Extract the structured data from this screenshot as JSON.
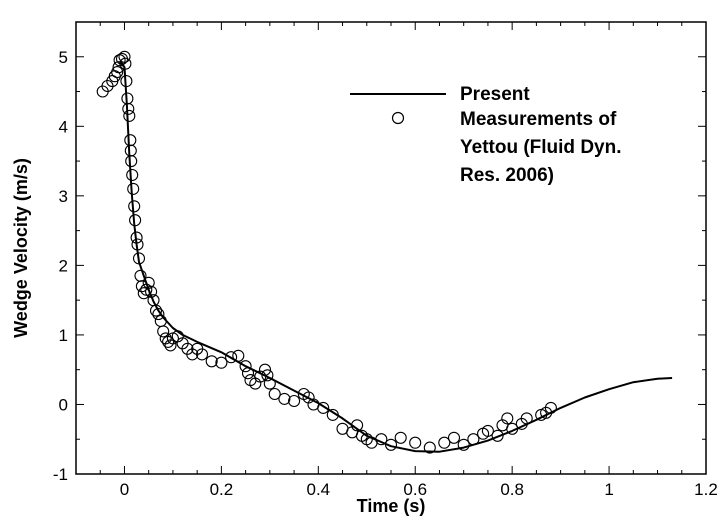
{
  "chart_data": {
    "type": "line",
    "title": "",
    "xlabel": "Time (s)",
    "ylabel": "Wedge Velocity (m/s)",
    "xlim": [
      -0.1,
      1.2
    ],
    "ylim": [
      -1,
      5.5
    ],
    "grid": false,
    "legend_position": "top-right",
    "xticks": [
      0,
      0.2,
      0.4,
      0.6,
      0.8,
      1,
      1.2
    ],
    "xtick_labels": [
      "0",
      "0.2",
      "0.4",
      "0.6",
      "0.8",
      "1",
      "1.2"
    ],
    "yticks": [
      -1,
      0,
      1,
      2,
      3,
      4,
      5
    ],
    "ytick_labels": [
      "-1",
      "0",
      "1",
      "2",
      "3",
      "4",
      "5"
    ],
    "series": [
      {
        "name": "Present",
        "style": "line",
        "color": "#000000",
        "x": [
          -0.01,
          0.0,
          0.005,
          0.01,
          0.015,
          0.02,
          0.025,
          0.03,
          0.04,
          0.05,
          0.06,
          0.07,
          0.08,
          0.1,
          0.12,
          0.15,
          0.2,
          0.25,
          0.3,
          0.35,
          0.4,
          0.45,
          0.5,
          0.55,
          0.6,
          0.65,
          0.7,
          0.75,
          0.8,
          0.85,
          0.9,
          0.95,
          1.0,
          1.05,
          1.1,
          1.13
        ],
        "y": [
          4.93,
          4.85,
          4.3,
          3.6,
          3.05,
          2.6,
          2.3,
          2.05,
          1.85,
          1.65,
          1.48,
          1.35,
          1.25,
          1.1,
          1.0,
          0.9,
          0.75,
          0.55,
          0.38,
          0.2,
          0.02,
          -0.2,
          -0.45,
          -0.6,
          -0.67,
          -0.68,
          -0.62,
          -0.52,
          -0.38,
          -0.22,
          -0.05,
          0.1,
          0.22,
          0.32,
          0.37,
          0.38
        ]
      },
      {
        "name": "Measurements of Yettou (Fluid Dyn. Res. 2006)",
        "style": "markers",
        "marker": "open-circle",
        "color": "#000000",
        "x": [
          -0.045,
          -0.035,
          -0.025,
          -0.02,
          -0.015,
          -0.012,
          -0.01,
          -0.005,
          0.0,
          0.002,
          0.004,
          0.006,
          0.008,
          0.01,
          0.012,
          0.013,
          0.014,
          0.016,
          0.018,
          0.02,
          0.022,
          0.025,
          0.027,
          0.03,
          0.033,
          0.036,
          0.04,
          0.045,
          0.05,
          0.055,
          0.06,
          0.065,
          0.07,
          0.075,
          0.08,
          0.085,
          0.09,
          0.095,
          0.1,
          0.11,
          0.12,
          0.13,
          0.14,
          0.15,
          0.16,
          0.18,
          0.2,
          0.22,
          0.235,
          0.25,
          0.255,
          0.26,
          0.27,
          0.28,
          0.29,
          0.295,
          0.3,
          0.31,
          0.33,
          0.35,
          0.37,
          0.38,
          0.39,
          0.41,
          0.43,
          0.45,
          0.47,
          0.48,
          0.49,
          0.5,
          0.51,
          0.53,
          0.55,
          0.57,
          0.6,
          0.63,
          0.66,
          0.68,
          0.7,
          0.72,
          0.74,
          0.75,
          0.77,
          0.78,
          0.79,
          0.8,
          0.82,
          0.83,
          0.86,
          0.87,
          0.88
        ],
        "y": [
          4.5,
          4.58,
          4.65,
          4.72,
          4.78,
          4.85,
          4.95,
          4.97,
          5.0,
          4.9,
          4.65,
          4.4,
          4.25,
          4.15,
          3.8,
          3.65,
          3.5,
          3.3,
          3.1,
          2.85,
          2.65,
          2.4,
          2.3,
          2.1,
          1.85,
          1.7,
          1.6,
          1.65,
          1.75,
          1.62,
          1.5,
          1.35,
          1.3,
          1.2,
          1.05,
          0.95,
          0.9,
          0.85,
          0.95,
          0.98,
          0.88,
          0.8,
          0.72,
          0.8,
          0.72,
          0.62,
          0.6,
          0.68,
          0.7,
          0.55,
          0.45,
          0.35,
          0.3,
          0.4,
          0.5,
          0.42,
          0.3,
          0.15,
          0.08,
          0.05,
          0.15,
          0.1,
          0.0,
          -0.05,
          -0.15,
          -0.35,
          -0.4,
          -0.3,
          -0.45,
          -0.5,
          -0.55,
          -0.5,
          -0.58,
          -0.48,
          -0.55,
          -0.62,
          -0.55,
          -0.48,
          -0.58,
          -0.5,
          -0.42,
          -0.38,
          -0.45,
          -0.3,
          -0.2,
          -0.35,
          -0.28,
          -0.2,
          -0.15,
          -0.12,
          -0.05
        ]
      }
    ]
  },
  "legend": {
    "entries": [
      {
        "key": "line",
        "lines": [
          "Present"
        ]
      },
      {
        "key": "circle",
        "lines": [
          "Measurements of",
          "Yettou (Fluid Dyn.",
          "Res. 2006)"
        ]
      }
    ]
  }
}
